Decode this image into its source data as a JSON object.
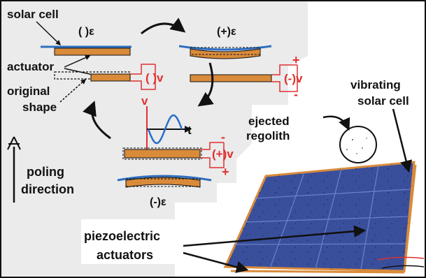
{
  "labels": {
    "solar_cell": "solar cell",
    "actuator": "actuator",
    "original_shape_line1": "original",
    "original_shape_line2": "shape",
    "poling_line1": "poling",
    "poling_line2": "direction",
    "ejected_line1": "ejected",
    "ejected_line2": "regolith",
    "vibrating_line1": "vibrating",
    "vibrating_line2": "solar cell",
    "piezo_line1": "piezoelectric",
    "piezo_line2": "actuators"
  },
  "states": {
    "neutral_strain": "( )ε",
    "positive_strain": "(+)ε",
    "negative_strain": "(-)ε",
    "neutral_voltage": "( )v",
    "negative_voltage": "(-)v",
    "positive_voltage": "(+)v"
  },
  "signs": {
    "plus": "+",
    "minus": "-"
  },
  "waveform_axes": {
    "v": "v",
    "t": "t"
  },
  "colors": {
    "background_panel": "#ebebeb",
    "actuator": "#d98b3a",
    "solar_cell": "#2f6fbf",
    "voltage": "#e03030",
    "waveform": "#2a6fc9",
    "solar_panel": "#3a4f9c",
    "text": "#111111"
  }
}
